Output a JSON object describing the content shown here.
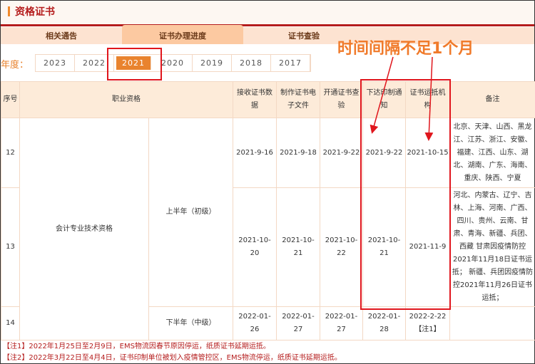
{
  "title": "资格证书",
  "tabs": [
    {
      "label": "相关通告"
    },
    {
      "label": "证书办理进度",
      "active": true
    },
    {
      "label": "证书查验"
    }
  ],
  "year_label": "年度：",
  "years": [
    "2023",
    "2022",
    "2021",
    "2020",
    "2019",
    "2018",
    "2017"
  ],
  "selected_year": "2021",
  "annotation": "时间间隔不足1个月",
  "table": {
    "headers": [
      "序号",
      "职业资格",
      "接收证书数据",
      "制作证书电子文件",
      "开通证书查验",
      "下达印制通知",
      "证书运抵机构",
      "备注"
    ],
    "qualification": "会计专业技术资格",
    "rows": [
      {
        "no": "12",
        "period": "上半年（初级）",
        "d1": "2021-9-16",
        "d2": "2021-9-18",
        "d3": "2021-9-22",
        "d4": "2021-9-22",
        "d5": "2021-10-15",
        "remark": "北京、天津、山西、黑龙江、江苏、浙江、安徽、福建、江西、山东、湖北、湖南、广东、海南、重庆、陕西、宁夏"
      },
      {
        "no": "13",
        "d1": "2021-10-20",
        "d2": "2021-10-21",
        "d3": "2021-10-22",
        "d4": "2021-10-21",
        "d5": "2021-11-9",
        "remark": "河北、内蒙古、辽宁、吉林、上海、河南、广西、四川、贵州、云南、甘肃、青海、新疆、兵团、西藏 甘肃因疫情防控2021年11月18日证书运抵； 新疆、兵团因疫情防控2021年11月26日证书运抵；"
      },
      {
        "no": "14",
        "period": "下半年（中级）",
        "d1": "2022-01-26",
        "d2": "2022-01-27",
        "d3": "2022-01-27",
        "d4": "2022-01-28",
        "d5": "2022-2-22",
        "d5_note": "【注1】",
        "remark": ""
      }
    ]
  },
  "notes": [
    "【注1】2022年1月25日至2月9日，EMS物流因春节原因停运，纸质证书延期运抵。",
    "【注2】2022年3月22日至4月4日，证书印制单位被划入疫情管控区，EMS物流停运，纸质证书延期运抵。"
  ],
  "colors": {
    "accent": "#e9832e",
    "brand_red": "#b51d1d",
    "highlight": "#e0161d"
  }
}
